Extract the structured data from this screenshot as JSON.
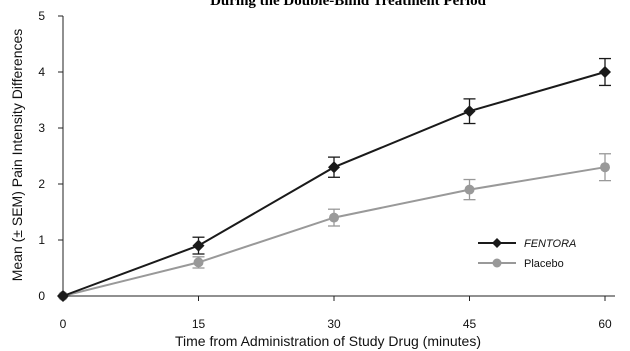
{
  "chart_data": {
    "type": "line",
    "title": "During the Double-Blind Treatment Period",
    "xlabel": "Time from Administration of Study Drug (minutes)",
    "ylabel": "Mean (± SEM) Pain Intensity Differences",
    "x": [
      0,
      15,
      30,
      45,
      60
    ],
    "x_ticks": [
      "0",
      "15",
      "30",
      "45",
      "60"
    ],
    "y_ticks": [
      "0",
      "1",
      "2",
      "3",
      "4",
      "5"
    ],
    "xlim": [
      0,
      60
    ],
    "ylim": [
      0,
      5
    ],
    "grid": false,
    "legend_position": "center-right",
    "series": [
      {
        "name": "FENTORA",
        "values": [
          0,
          0.9,
          2.3,
          3.3,
          4.0
        ],
        "sem": [
          0,
          0.15,
          0.18,
          0.22,
          0.24
        ],
        "color": "#1a1a1a",
        "marker": "diamond"
      },
      {
        "name": "Placebo",
        "values": [
          0,
          0.6,
          1.4,
          1.9,
          2.3
        ],
        "sem": [
          0,
          0.1,
          0.15,
          0.18,
          0.24
        ],
        "color": "#999999",
        "marker": "circle"
      }
    ]
  }
}
